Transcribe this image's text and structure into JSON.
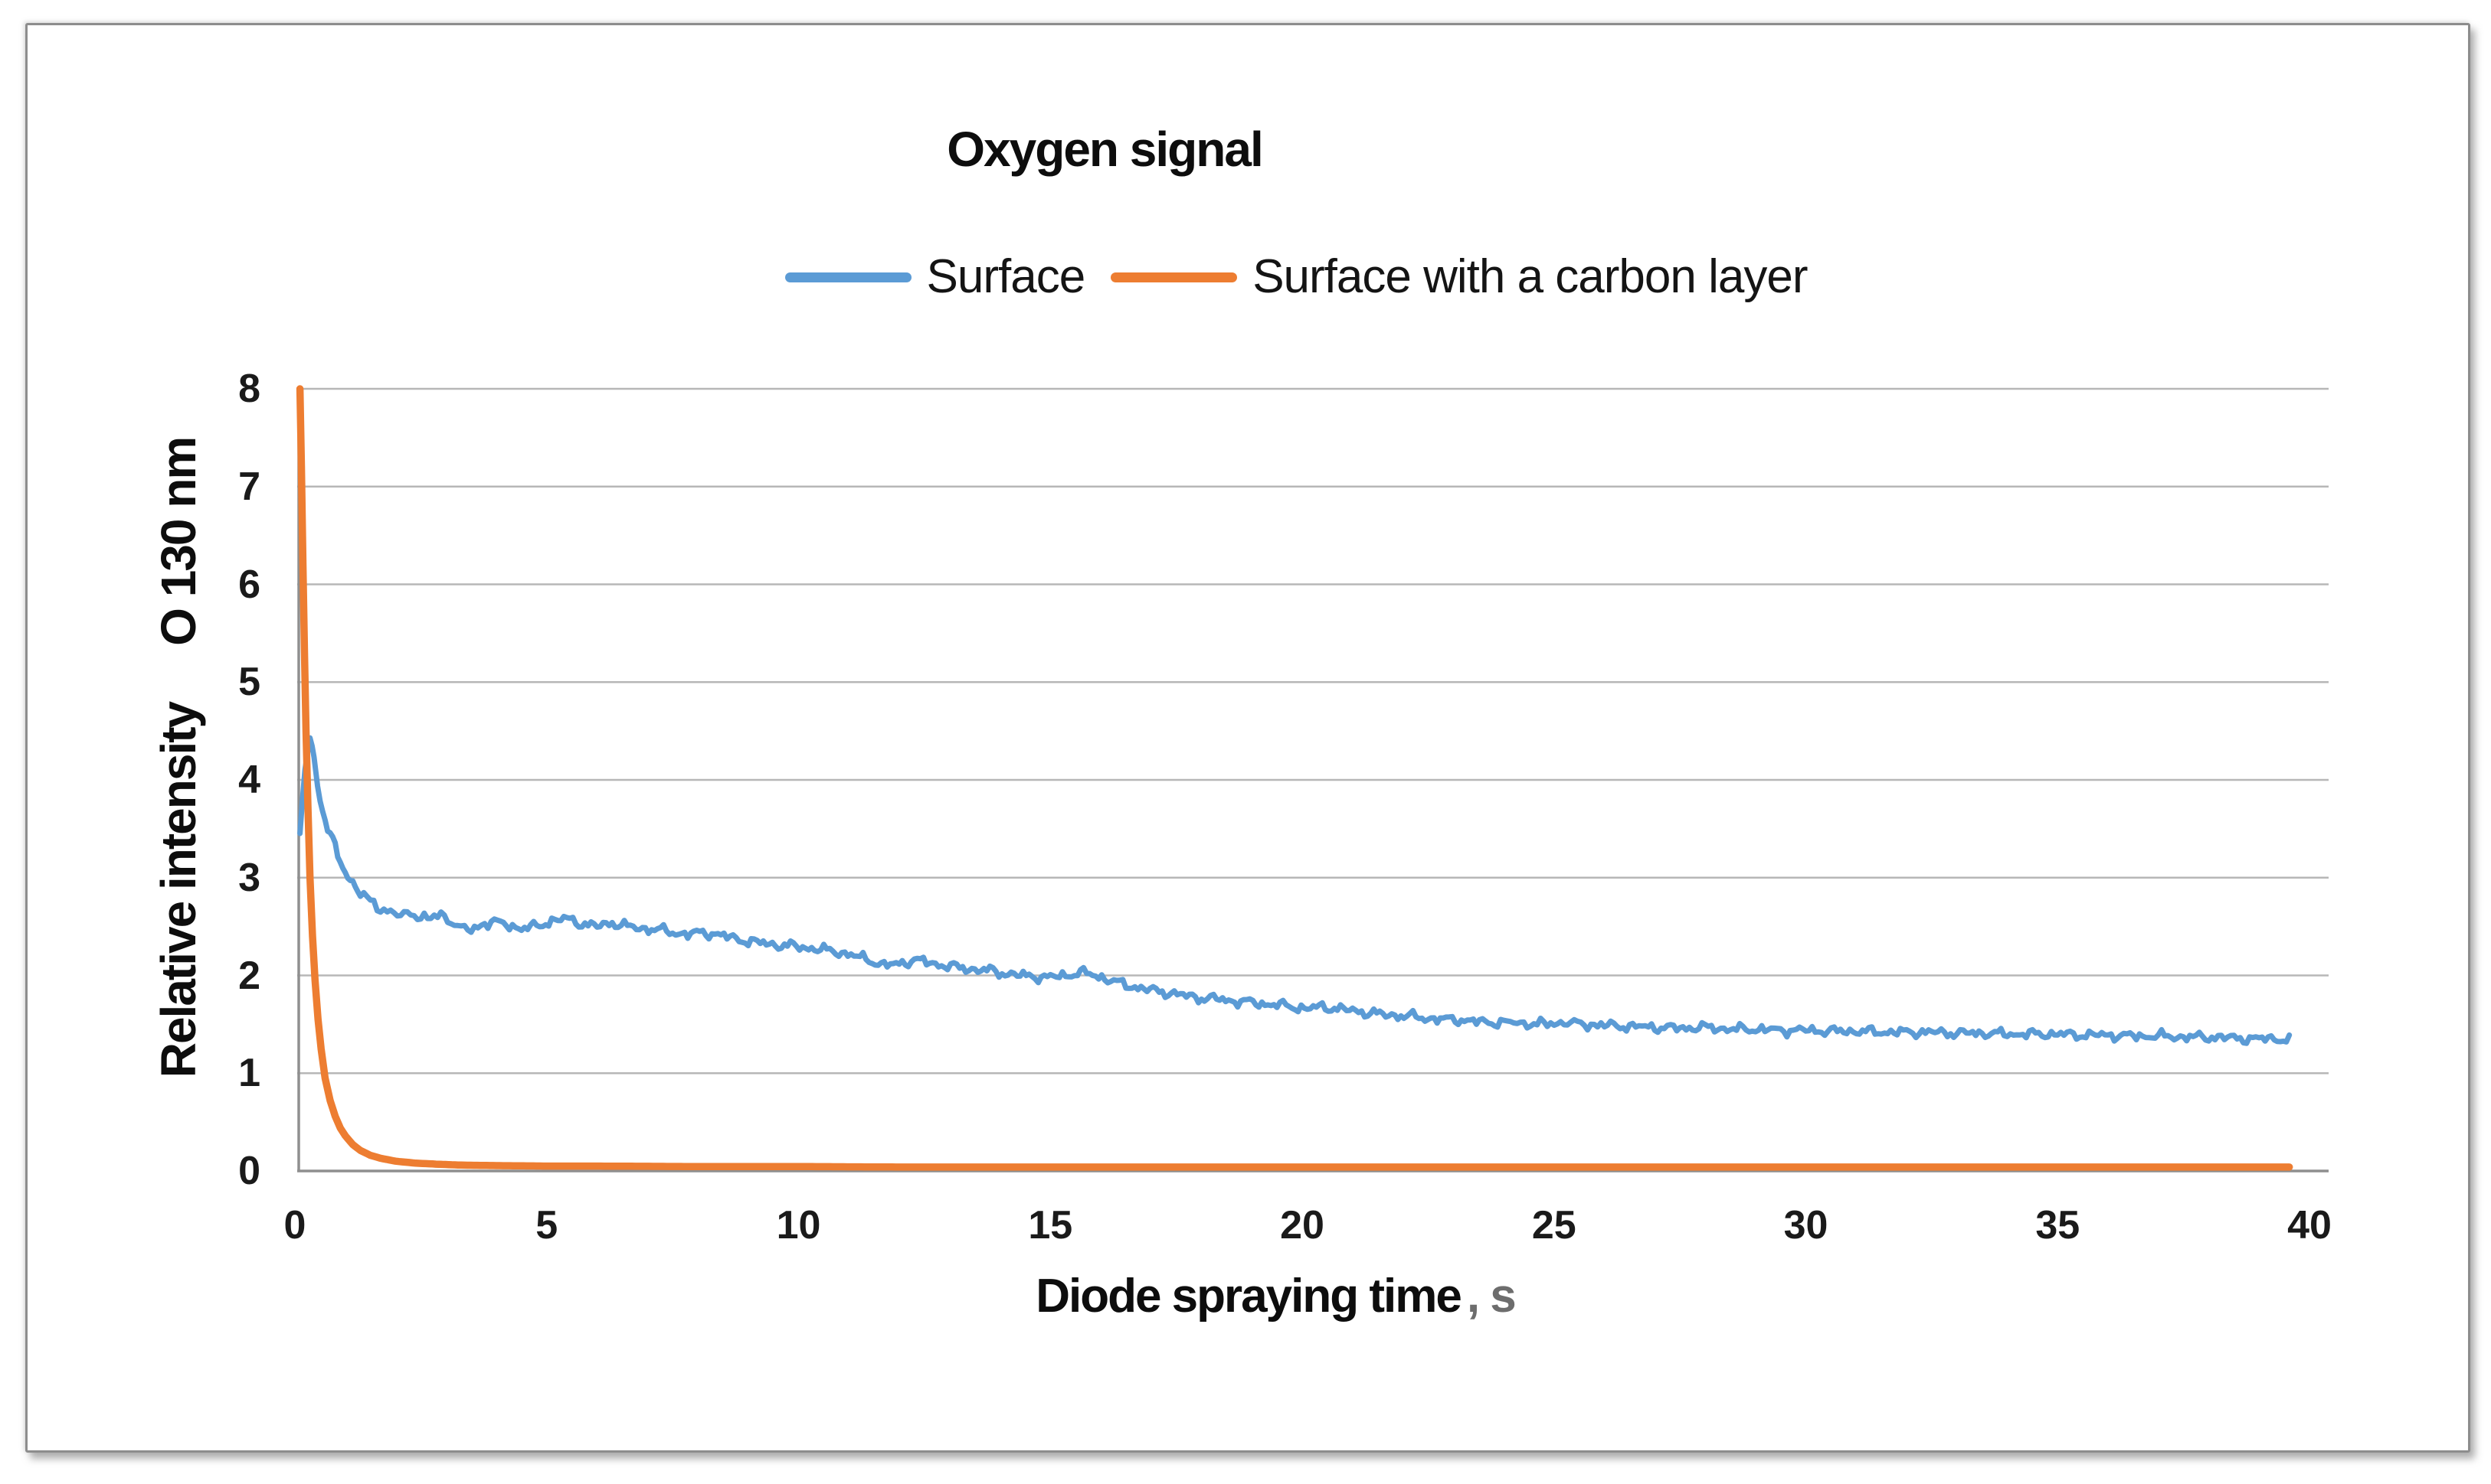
{
  "figure": {
    "title": "Oxygen signal",
    "xlabel_main": "Diode spraying time",
    "xlabel_unit": ", s",
    "ylabel_main": "Relative intensity",
    "ylabel_unit": "O 130 nm"
  },
  "chart_data": {
    "type": "line",
    "title": "Oxygen signal",
    "xlabel": "Diode spraying time, s",
    "ylabel": "Relative intensity, O 130 nm",
    "xlim": [
      0,
      40
    ],
    "ylim": [
      0,
      8
    ],
    "x_ticks": [
      0,
      5,
      10,
      15,
      20,
      25,
      30,
      35,
      40
    ],
    "y_ticks": [
      0,
      1,
      2,
      3,
      4,
      5,
      6,
      7,
      8
    ],
    "grid": "horizontal-only",
    "legend_position": "top-center",
    "grid_color": "#b7b7b7",
    "axis_color": "#8f8f8f",
    "series": [
      {
        "name": "Surface",
        "color": "#5B9BD5",
        "style": "noisy",
        "points": [
          [
            0.1,
            3.45
          ],
          [
            0.2,
            4.1
          ],
          [
            0.3,
            4.45
          ],
          [
            0.38,
            4.2
          ],
          [
            0.45,
            3.95
          ],
          [
            0.55,
            3.7
          ],
          [
            0.65,
            3.5
          ],
          [
            0.75,
            3.38
          ],
          [
            0.85,
            3.22
          ],
          [
            1.0,
            3.05
          ],
          [
            1.15,
            2.95
          ],
          [
            1.3,
            2.85
          ],
          [
            1.5,
            2.75
          ],
          [
            1.7,
            2.68
          ],
          [
            1.9,
            2.66
          ],
          [
            2.1,
            2.6
          ],
          [
            2.3,
            2.64
          ],
          [
            2.5,
            2.6
          ],
          [
            2.7,
            2.58
          ],
          [
            2.9,
            2.62
          ],
          [
            3.1,
            2.56
          ],
          [
            3.3,
            2.48
          ],
          [
            3.5,
            2.46
          ],
          [
            3.7,
            2.52
          ],
          [
            3.9,
            2.55
          ],
          [
            4.2,
            2.52
          ],
          [
            4.5,
            2.48
          ],
          [
            4.8,
            2.5
          ],
          [
            5.1,
            2.56
          ],
          [
            5.4,
            2.58
          ],
          [
            5.7,
            2.53
          ],
          [
            6.0,
            2.5
          ],
          [
            6.3,
            2.54
          ],
          [
            6.6,
            2.5
          ],
          [
            6.9,
            2.48
          ],
          [
            7.2,
            2.47
          ],
          [
            7.5,
            2.44
          ],
          [
            7.8,
            2.42
          ],
          [
            8.1,
            2.44
          ],
          [
            8.4,
            2.42
          ],
          [
            8.7,
            2.38
          ],
          [
            9.0,
            2.35
          ],
          [
            9.3,
            2.33
          ],
          [
            9.6,
            2.31
          ],
          [
            9.9,
            2.3
          ],
          [
            10.2,
            2.28
          ],
          [
            10.5,
            2.26
          ],
          [
            10.8,
            2.24
          ],
          [
            11.1,
            2.2
          ],
          [
            11.4,
            2.16
          ],
          [
            11.7,
            2.1
          ],
          [
            12.0,
            2.12
          ],
          [
            12.3,
            2.16
          ],
          [
            12.6,
            2.13
          ],
          [
            12.9,
            2.1
          ],
          [
            13.2,
            2.08
          ],
          [
            13.5,
            2.06
          ],
          [
            13.8,
            2.05
          ],
          [
            14.1,
            2.02
          ],
          [
            14.4,
            2.0
          ],
          [
            14.7,
            1.99
          ],
          [
            15.0,
            1.98
          ],
          [
            15.3,
            2.0
          ],
          [
            15.6,
            2.03
          ],
          [
            15.9,
            2.0
          ],
          [
            16.2,
            1.95
          ],
          [
            16.5,
            1.9
          ],
          [
            16.8,
            1.87
          ],
          [
            17.1,
            1.84
          ],
          [
            17.4,
            1.82
          ],
          [
            17.7,
            1.79
          ],
          [
            18.0,
            1.77
          ],
          [
            18.3,
            1.76
          ],
          [
            18.6,
            1.74
          ],
          [
            18.9,
            1.73
          ],
          [
            19.2,
            1.71
          ],
          [
            19.5,
            1.7
          ],
          [
            19.8,
            1.68
          ],
          [
            20.1,
            1.66
          ],
          [
            20.4,
            1.68
          ],
          [
            20.7,
            1.66
          ],
          [
            21.0,
            1.64
          ],
          [
            21.3,
            1.62
          ],
          [
            21.6,
            1.6
          ],
          [
            21.9,
            1.59
          ],
          [
            22.2,
            1.58
          ],
          [
            22.5,
            1.56
          ],
          [
            22.8,
            1.55
          ],
          [
            23.1,
            1.55
          ],
          [
            23.4,
            1.53
          ],
          [
            23.7,
            1.52
          ],
          [
            24.0,
            1.52
          ],
          [
            24.4,
            1.51
          ],
          [
            24.8,
            1.5
          ],
          [
            25.2,
            1.52
          ],
          [
            25.6,
            1.5
          ],
          [
            26.0,
            1.49
          ],
          [
            26.5,
            1.48
          ],
          [
            27.0,
            1.47
          ],
          [
            27.5,
            1.46
          ],
          [
            28.0,
            1.47
          ],
          [
            28.5,
            1.45
          ],
          [
            29.0,
            1.45
          ],
          [
            29.5,
            1.44
          ],
          [
            30.0,
            1.44
          ],
          [
            30.5,
            1.43
          ],
          [
            31.0,
            1.43
          ],
          [
            31.5,
            1.42
          ],
          [
            32.0,
            1.42
          ],
          [
            32.5,
            1.42
          ],
          [
            33.0,
            1.41
          ],
          [
            33.5,
            1.41
          ],
          [
            34.0,
            1.4
          ],
          [
            34.5,
            1.4
          ],
          [
            35.0,
            1.4
          ],
          [
            35.5,
            1.39
          ],
          [
            36.0,
            1.39
          ],
          [
            36.5,
            1.38
          ],
          [
            37.0,
            1.38
          ],
          [
            37.5,
            1.37
          ],
          [
            38.0,
            1.37
          ],
          [
            38.5,
            1.36
          ],
          [
            39.0,
            1.35
          ],
          [
            39.3,
            1.36
          ],
          [
            39.6,
            1.33
          ]
        ]
      },
      {
        "name": "Surface with a carbon layer",
        "color": "#ED7D31",
        "style": "smooth",
        "points": [
          [
            0.1,
            8.0
          ],
          [
            0.13,
            7.2
          ],
          [
            0.16,
            6.2
          ],
          [
            0.19,
            5.3
          ],
          [
            0.22,
            4.5
          ],
          [
            0.26,
            3.7
          ],
          [
            0.3,
            3.0
          ],
          [
            0.35,
            2.4
          ],
          [
            0.4,
            1.95
          ],
          [
            0.46,
            1.55
          ],
          [
            0.52,
            1.25
          ],
          [
            0.6,
            0.95
          ],
          [
            0.7,
            0.72
          ],
          [
            0.8,
            0.56
          ],
          [
            0.9,
            0.44
          ],
          [
            1.0,
            0.36
          ],
          [
            1.15,
            0.27
          ],
          [
            1.3,
            0.21
          ],
          [
            1.5,
            0.16
          ],
          [
            1.7,
            0.13
          ],
          [
            2.0,
            0.1
          ],
          [
            2.4,
            0.08
          ],
          [
            2.8,
            0.07
          ],
          [
            3.3,
            0.06
          ],
          [
            4.0,
            0.055
          ],
          [
            5.0,
            0.05
          ],
          [
            6.0,
            0.05
          ],
          [
            8.0,
            0.045
          ],
          [
            10.0,
            0.045
          ],
          [
            12.0,
            0.04
          ],
          [
            15.0,
            0.04
          ],
          [
            18.0,
            0.04
          ],
          [
            21.0,
            0.04
          ],
          [
            24.0,
            0.04
          ],
          [
            27.0,
            0.04
          ],
          [
            30.0,
            0.04
          ],
          [
            33.0,
            0.04
          ],
          [
            36.0,
            0.04
          ],
          [
            38.0,
            0.04
          ],
          [
            39.6,
            0.04
          ]
        ]
      }
    ]
  }
}
